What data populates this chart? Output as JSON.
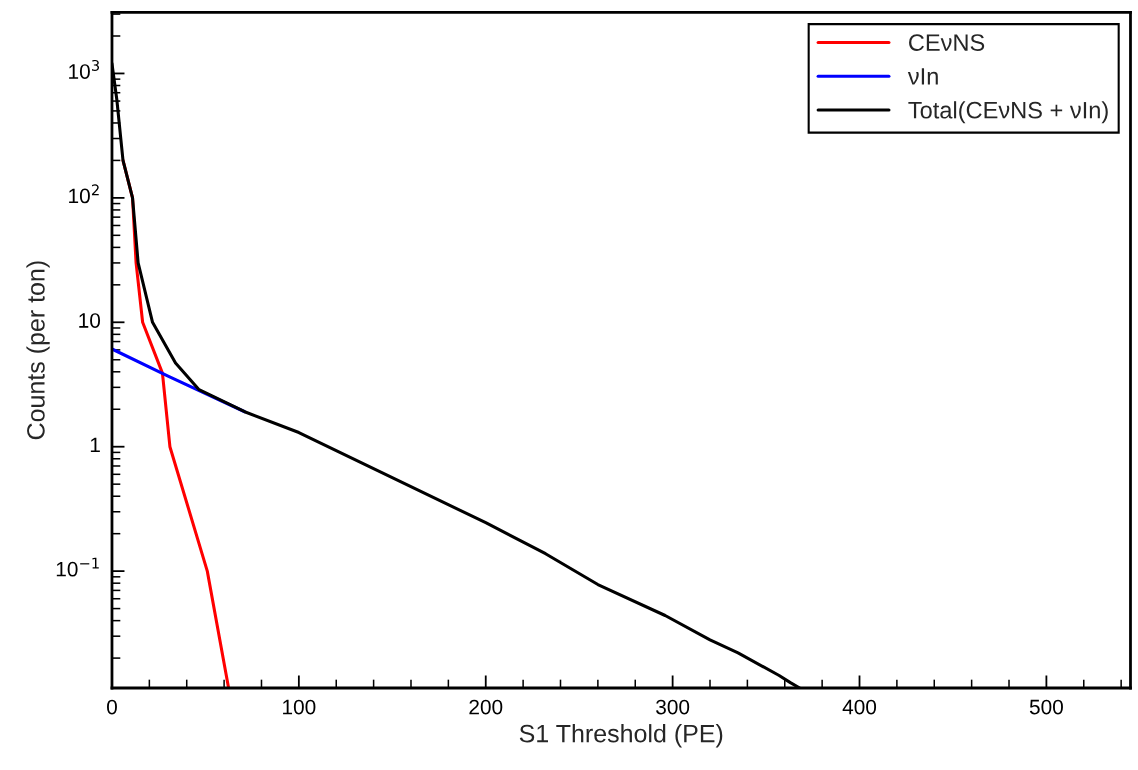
{
  "chart_data": {
    "type": "line",
    "xlabel": "S1 Threshold (PE)",
    "ylabel": "Counts (per ton)",
    "series": [
      {
        "name": "CEνNS",
        "color": "#ff0000",
        "x": [
          5.9,
          11,
          12.9,
          16.4,
          27,
          31,
          51,
          62.4
        ],
        "values": [
          200,
          100,
          30,
          10,
          3.9,
          1,
          0.1,
          0.0115
        ]
      },
      {
        "name": "νIn",
        "color": "#0000ff",
        "x": [
          0,
          30,
          71
        ],
        "values": [
          6.1,
          3.7,
          1.91
        ]
      },
      {
        "name": "Total(CEνNS + νIn)",
        "color": "#000000",
        "x": [
          0,
          2.6,
          5.9,
          11,
          14,
          21.7,
          34,
          46.6,
          71,
          100,
          200,
          232,
          260,
          296,
          320,
          335,
          357,
          363,
          368
        ],
        "values": [
          1200,
          615,
          200,
          100,
          30,
          10,
          4.7,
          2.87,
          1.91,
          1.3,
          0.245,
          0.138,
          0.078,
          0.044,
          0.028,
          0.022,
          0.0145,
          0.0127,
          0.0115
        ]
      }
    ],
    "log": "y",
    "xlim": [
      0,
      545
    ],
    "ylim": [
      0.0115,
      3100
    ],
    "xticks": [
      0,
      100,
      200,
      300,
      400,
      500
    ],
    "yticks": [
      {
        "value": 0.1,
        "label": "10$^{−1}$"
      },
      1,
      10,
      {
        "value": 100,
        "label": "10$^{2}$"
      },
      {
        "value": 1000,
        "label": "10$^{3}$"
      }
    ],
    "legend": "top right",
    "grid": false,
    "marker": "none",
    "line_style": "solid"
  }
}
